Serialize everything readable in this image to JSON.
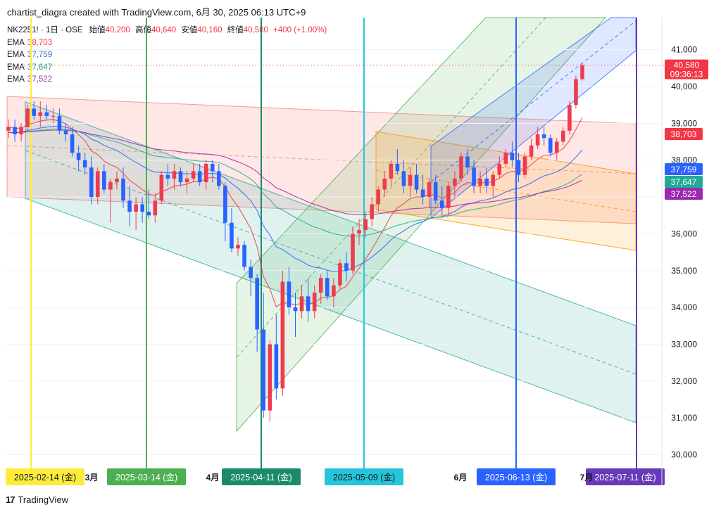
{
  "header": {
    "title": "chartist_diagra created with TradingView.com, 6月 30, 2025 06:13 UTC+9"
  },
  "legend": {
    "symbol": "NK2251! · 1日 · OSE",
    "open_label": "始値",
    "open": "40,200",
    "high_label": "高値",
    "high": "40,640",
    "low_label": "安値",
    "low": "40,160",
    "close_label": "終値",
    "close": "40,580",
    "change": "+400 (+1.00%)",
    "ema_label": "EMA",
    "emas": [
      {
        "value": "38,703",
        "color": "#e8474a"
      },
      {
        "value": "37,759",
        "color": "#3f6fd8"
      },
      {
        "value": "37,647",
        "color": "#2e9d87"
      },
      {
        "value": "37,522",
        "color": "#8e3fb0"
      }
    ]
  },
  "footer": {
    "brand": "TradingView",
    "logo": "17"
  },
  "colors": {
    "up": "#ef3b4e",
    "down": "#2962ff",
    "grid": "#f0f3fa"
  },
  "chart_data": {
    "type": "candlestick",
    "instrument": "NK2251!",
    "interval": "1日",
    "ylim": [
      29700,
      41800
    ],
    "y_ticks": [
      "41,000",
      "40,000",
      "39,000",
      "38,000",
      "37,000",
      "36,000",
      "35,000",
      "34,000",
      "33,000",
      "32,000",
      "31,000",
      "30,000"
    ],
    "x_labels": [
      "3月",
      "4月",
      "6月",
      "7月"
    ],
    "last_price": {
      "value": "40,580",
      "countdown": "09:36:13",
      "color": "#f23645"
    },
    "ema_labels": [
      {
        "value": "38,703",
        "color": "#f23645"
      },
      {
        "value": "37,759",
        "color": "#2962ff"
      },
      {
        "value": "37,647",
        "color": "#22ab94"
      },
      {
        "value": "37,522",
        "color": "#9c27b0"
      }
    ],
    "vlines": [
      {
        "date": "2025-02-14",
        "label": "2025-02-14 (金)",
        "color": "#ffeb3b",
        "text": "#131722"
      },
      {
        "date": "2025-03-14",
        "label": "2025-03-14 (金)",
        "color": "#4caf50",
        "text": "#ffffff"
      },
      {
        "date": "2025-04-11",
        "label": "2025-04-11 (金)",
        "color": "#1b8a6b",
        "text": "#ffffff"
      },
      {
        "date": "2025-05-09",
        "label": "2025-05-09 (金)",
        "color": "#26c6da",
        "text": "#131722"
      },
      {
        "date": "2025-06-13",
        "label": "2025-06-13 (金)",
        "color": "#2962ff",
        "text": "#ffffff"
      },
      {
        "date": "2025-07-11",
        "label": "2025-07-11 (金)",
        "color": "#673ab7",
        "text": "#ffffff"
      }
    ],
    "candles": [
      [
        38800,
        39100,
        38600,
        38900
      ],
      [
        38900,
        39100,
        38500,
        38700
      ],
      [
        38700,
        39000,
        38500,
        38900
      ],
      [
        38900,
        39500,
        38800,
        39400
      ],
      [
        39400,
        39600,
        39100,
        39200
      ],
      [
        39200,
        39600,
        38900,
        39300
      ],
      [
        39300,
        39500,
        39100,
        39200
      ],
      [
        39200,
        39400,
        39000,
        39200
      ],
      [
        39200,
        39400,
        38700,
        38800
      ],
      [
        38800,
        39000,
        38500,
        38700
      ],
      [
        38700,
        38900,
        38100,
        38200
      ],
      [
        38200,
        38400,
        37700,
        38000
      ],
      [
        38000,
        38200,
        37600,
        37800
      ],
      [
        37800,
        38100,
        36800,
        37000
      ],
      [
        37000,
        37800,
        36800,
        37700
      ],
      [
        37700,
        37900,
        37100,
        37200
      ],
      [
        37200,
        37500,
        36300,
        37400
      ],
      [
        37400,
        37700,
        37200,
        37500
      ],
      [
        37500,
        37800,
        36700,
        36900
      ],
      [
        36900,
        37300,
        36200,
        36600
      ],
      [
        36600,
        37000,
        36100,
        36800
      ],
      [
        36800,
        37000,
        36300,
        36600
      ],
      [
        36600,
        37200,
        36400,
        36500
      ],
      [
        36500,
        37100,
        36300,
        36900
      ],
      [
        36900,
        37700,
        36800,
        37600
      ],
      [
        37600,
        37900,
        37300,
        37500
      ],
      [
        37500,
        37900,
        37200,
        37700
      ],
      [
        37700,
        37800,
        37300,
        37400
      ],
      [
        37400,
        37700,
        37100,
        37500
      ],
      [
        37500,
        37900,
        37400,
        37700
      ],
      [
        37700,
        37900,
        37300,
        37400
      ],
      [
        37400,
        38000,
        37200,
        37900
      ],
      [
        37900,
        38000,
        37400,
        37700
      ],
      [
        37700,
        37900,
        37200,
        37300
      ],
      [
        37300,
        37400,
        35800,
        36300
      ],
      [
        36300,
        36700,
        35500,
        35600
      ],
      [
        35600,
        35900,
        35400,
        35700
      ],
      [
        35700,
        35800,
        35000,
        35100
      ],
      [
        35100,
        35300,
        34300,
        34800
      ],
      [
        34800,
        34900,
        32800,
        33400
      ],
      [
        33400,
        34400,
        31000,
        31200
      ],
      [
        31200,
        33100,
        30900,
        33000
      ],
      [
        33000,
        33800,
        31500,
        31800
      ],
      [
        31800,
        35000,
        31600,
        34700
      ],
      [
        34700,
        35100,
        33800,
        34000
      ],
      [
        34000,
        34400,
        33200,
        33900
      ],
      [
        33900,
        34600,
        33700,
        34300
      ],
      [
        34300,
        34800,
        33600,
        33900
      ],
      [
        33900,
        34600,
        33700,
        34400
      ],
      [
        34400,
        34900,
        34100,
        34800
      ],
      [
        34800,
        35000,
        34200,
        34300
      ],
      [
        34300,
        34800,
        34000,
        34600
      ],
      [
        34600,
        35300,
        34500,
        35200
      ],
      [
        35200,
        35500,
        34700,
        35000
      ],
      [
        35000,
        36200,
        34900,
        36000
      ],
      [
        36000,
        36400,
        35700,
        36100
      ],
      [
        36100,
        36600,
        35900,
        36400
      ],
      [
        36400,
        37000,
        36200,
        36800
      ],
      [
        36800,
        37300,
        36600,
        37200
      ],
      [
        37200,
        37700,
        37000,
        37500
      ],
      [
        37500,
        38000,
        37300,
        37900
      ],
      [
        37900,
        38300,
        37600,
        37700
      ],
      [
        37700,
        38000,
        37100,
        37300
      ],
      [
        37300,
        37800,
        37000,
        37600
      ],
      [
        37600,
        37900,
        37100,
        37200
      ],
      [
        37200,
        37600,
        36800,
        37000
      ],
      [
        37000,
        37500,
        36700,
        37400
      ],
      [
        37400,
        37600,
        36800,
        36900
      ],
      [
        36900,
        37300,
        36500,
        36700
      ],
      [
        36700,
        37400,
        36500,
        37300
      ],
      [
        37300,
        37700,
        37000,
        37500
      ],
      [
        37500,
        38200,
        37400,
        38100
      ],
      [
        38100,
        38300,
        37600,
        37800
      ],
      [
        37800,
        38000,
        37100,
        37300
      ],
      [
        37300,
        37700,
        37100,
        37500
      ],
      [
        37500,
        37800,
        37100,
        37300
      ],
      [
        37300,
        37700,
        37000,
        37600
      ],
      [
        37600,
        38100,
        37500,
        37900
      ],
      [
        37900,
        38300,
        37800,
        38200
      ],
      [
        38200,
        38500,
        37800,
        38000
      ],
      [
        38000,
        38200,
        37400,
        37600
      ],
      [
        37600,
        38200,
        37500,
        38100
      ],
      [
        38100,
        38600,
        38000,
        38400
      ],
      [
        38400,
        38900,
        38300,
        38700
      ],
      [
        38700,
        38900,
        38400,
        38600
      ],
      [
        38600,
        38700,
        38100,
        38200
      ],
      [
        38200,
        38600,
        38000,
        38500
      ],
      [
        38500,
        38900,
        38400,
        38800
      ],
      [
        38800,
        39600,
        38700,
        39500
      ],
      [
        39500,
        40300,
        39400,
        40200
      ],
      [
        40200,
        40640,
        40160,
        40580
      ]
    ]
  }
}
